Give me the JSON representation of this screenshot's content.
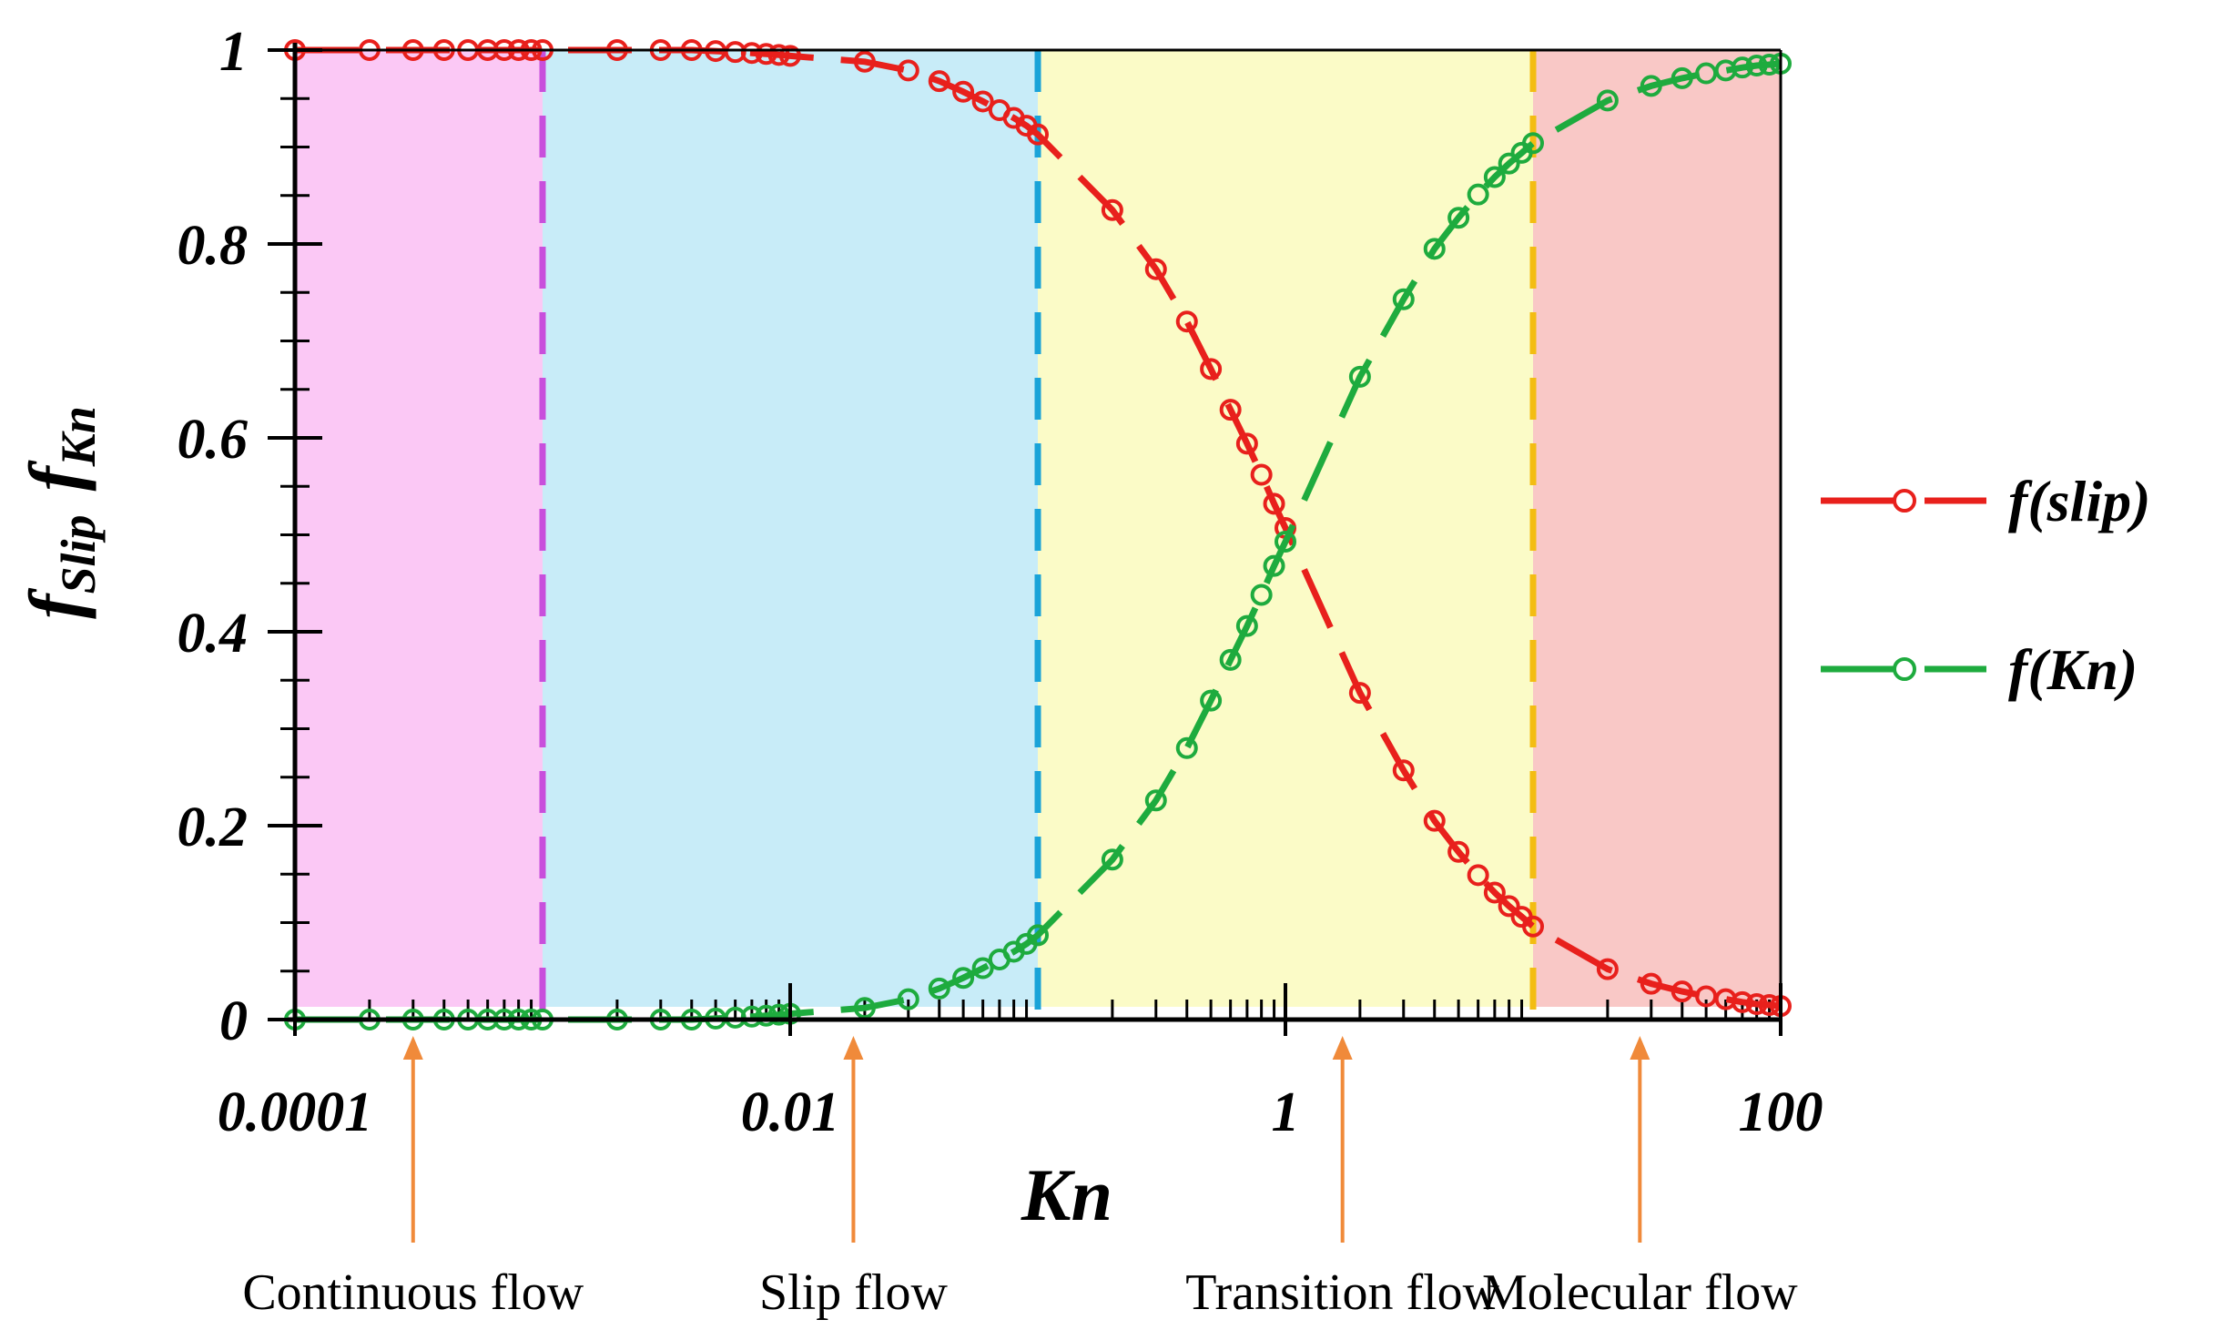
{
  "chart_data": {
    "type": "line",
    "title": "",
    "xlabel": "Kn",
    "ylabel_main": "f",
    "ylabel_sub1": "Slip",
    "ylabel_sub2": "Kn",
    "xscale": "log",
    "xlim": [
      0.0001,
      100
    ],
    "ylim": [
      0,
      1
    ],
    "x_tick_values": [
      0.0001,
      0.01,
      1,
      100
    ],
    "x_tick_labels": [
      "0.0001",
      "0.01",
      "1",
      "100"
    ],
    "y_tick_values": [
      0,
      0.2,
      0.4,
      0.6,
      0.8,
      1
    ],
    "y_tick_labels": [
      "0",
      "0.2",
      "0.4",
      "0.6",
      "0.8",
      "1"
    ],
    "legend_position": "right",
    "regions": [
      {
        "name": "Continuous flow",
        "x_from": 0.0001,
        "x_to": 0.001,
        "color": "#fbc8f5",
        "boundary_color": "#c84fdc"
      },
      {
        "name": "Slip flow",
        "x_from": 0.001,
        "x_to": 0.1,
        "color": "#c8ecf8",
        "boundary_color": "#1aa3d8"
      },
      {
        "name": "Transition flow",
        "x_from": 0.1,
        "x_to": 10,
        "color": "#fbfbc7",
        "boundary_color": "#f3bd12"
      },
      {
        "name": "Molecular flow",
        "x_from": 10,
        "x_to": 100,
        "color": "#f9c8c6",
        "boundary_color": null
      }
    ],
    "annotations": [
      {
        "text": "Continuous flow",
        "x": 0.0003
      },
      {
        "text": "Slip flow",
        "x": 0.018
      },
      {
        "text": "Transition flow",
        "x": 1.7
      },
      {
        "text": "Molecular flow",
        "x": 27
      }
    ],
    "series": [
      {
        "name": "f(slip)",
        "color": "#e8201c",
        "x": [
          0.0001,
          0.0002,
          0.0003,
          0.0004,
          0.0005,
          0.0006,
          0.0007,
          0.0008,
          0.0009,
          0.001,
          0.002,
          0.003,
          0.004,
          0.005,
          0.006,
          0.007,
          0.008,
          0.009,
          0.01,
          0.02,
          0.03,
          0.04,
          0.05,
          0.06,
          0.07,
          0.08,
          0.09,
          0.1,
          0.2,
          0.3,
          0.4,
          0.5,
          0.6,
          0.7,
          0.8,
          0.9,
          1,
          2,
          3,
          4,
          5,
          6,
          7,
          8,
          9,
          10,
          20,
          30,
          40,
          50,
          60,
          70,
          80,
          90,
          100
        ],
        "values": [
          1.0,
          1.0,
          1.0,
          1.0,
          1.0,
          1.0,
          1.0,
          1.0,
          1.0,
          1.0,
          1.0,
          1.0,
          1.0,
          0.999,
          0.998,
          0.997,
          0.996,
          0.995,
          0.994,
          0.988,
          0.979,
          0.968,
          0.957,
          0.947,
          0.938,
          0.93,
          0.922,
          0.913,
          0.835,
          0.774,
          0.72,
          0.671,
          0.629,
          0.594,
          0.562,
          0.532,
          0.507,
          0.337,
          0.257,
          0.205,
          0.173,
          0.149,
          0.131,
          0.117,
          0.106,
          0.096,
          0.052,
          0.037,
          0.029,
          0.024,
          0.021,
          0.018,
          0.016,
          0.015,
          0.014
        ]
      },
      {
        "name": "f(Kn)",
        "color": "#1eab3e",
        "x": [
          0.0001,
          0.0002,
          0.0003,
          0.0004,
          0.0005,
          0.0006,
          0.0007,
          0.0008,
          0.0009,
          0.001,
          0.002,
          0.003,
          0.004,
          0.005,
          0.006,
          0.007,
          0.008,
          0.009,
          0.01,
          0.02,
          0.03,
          0.04,
          0.05,
          0.06,
          0.07,
          0.08,
          0.09,
          0.1,
          0.2,
          0.3,
          0.4,
          0.5,
          0.6,
          0.7,
          0.8,
          0.9,
          1,
          2,
          3,
          4,
          5,
          6,
          7,
          8,
          9,
          10,
          20,
          30,
          40,
          50,
          60,
          70,
          80,
          90,
          100
        ],
        "values": [
          0.0,
          0.0,
          0.0,
          0.0,
          0.0,
          0.0,
          0.0,
          0.0,
          0.0,
          0.0,
          0.0,
          0.0,
          0.0,
          0.001,
          0.002,
          0.003,
          0.004,
          0.005,
          0.006,
          0.012,
          0.021,
          0.032,
          0.043,
          0.053,
          0.062,
          0.07,
          0.078,
          0.087,
          0.165,
          0.226,
          0.28,
          0.329,
          0.371,
          0.406,
          0.438,
          0.468,
          0.493,
          0.663,
          0.743,
          0.795,
          0.827,
          0.851,
          0.869,
          0.883,
          0.894,
          0.904,
          0.948,
          0.963,
          0.971,
          0.976,
          0.979,
          0.982,
          0.984,
          0.985,
          0.986
        ]
      }
    ]
  }
}
